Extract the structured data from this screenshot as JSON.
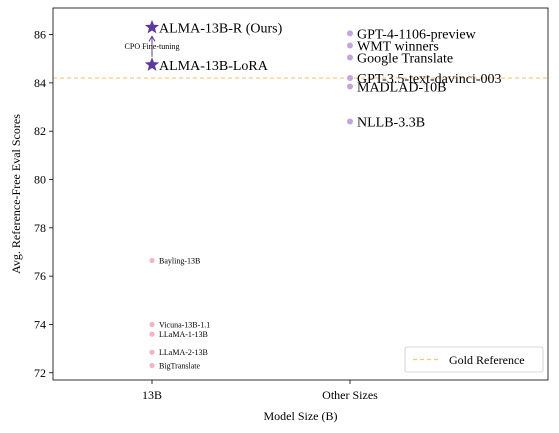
{
  "chart_data": {
    "type": "scatter",
    "title": "",
    "xlabel": "Model Size (B)",
    "ylabel": "Avg. Reference-Free Eval Scores",
    "x_categories": [
      "13B",
      "Other Sizes"
    ],
    "xlim": [
      -0.5,
      2.0
    ],
    "ylim": [
      71.7,
      87.1
    ],
    "yticks": [
      72,
      74,
      76,
      78,
      80,
      82,
      84,
      86
    ],
    "grid": false,
    "legend": {
      "position": "lower right",
      "entries": [
        {
          "label": "Gold Reference",
          "style": "dashed",
          "color": "#fdc57f"
        }
      ]
    },
    "reference_line": {
      "label": "Gold Reference",
      "y": 84.2,
      "color": "#fdc57f"
    },
    "series": [
      {
        "name": "ALMA-13B-R (Ours)",
        "x": 0,
        "y": 86.3,
        "marker": "star",
        "color": "#5b3a9a",
        "label_size": "large"
      },
      {
        "name": "ALMA-13B-LoRA",
        "x": 0,
        "y": 84.75,
        "marker": "star",
        "color": "#5b3a9a",
        "label_size": "large"
      },
      {
        "name": "Bayling-13B",
        "x": 0,
        "y": 76.65,
        "marker": "dot",
        "color": "#f4b3c5",
        "label_size": "small"
      },
      {
        "name": "Vicuna-13B-1.1",
        "x": 0,
        "y": 74.0,
        "marker": "dot",
        "color": "#f4b3c5",
        "label_size": "small"
      },
      {
        "name": "LLaMA-1-13B",
        "x": 0,
        "y": 73.6,
        "marker": "dot",
        "color": "#f4b3c5",
        "label_size": "small"
      },
      {
        "name": "LLaMA-2-13B",
        "x": 0,
        "y": 72.85,
        "marker": "dot",
        "color": "#f4b3c5",
        "label_size": "small"
      },
      {
        "name": "BigTranslate",
        "x": 0,
        "y": 72.3,
        "marker": "dot",
        "color": "#f4b3c5",
        "label_size": "small"
      },
      {
        "name": "GPT-4-1106-preview",
        "x": 1,
        "y": 86.05,
        "marker": "dot",
        "color": "#c3a7da",
        "label_size": "large"
      },
      {
        "name": "WMT winners",
        "x": 1,
        "y": 85.55,
        "marker": "dot",
        "color": "#c3a7da",
        "label_size": "large"
      },
      {
        "name": "Google Translate",
        "x": 1,
        "y": 85.05,
        "marker": "dot",
        "color": "#c3a7da",
        "label_size": "large"
      },
      {
        "name": "GPT-3.5-text-davinci-003",
        "x": 1,
        "y": 84.2,
        "marker": "dot",
        "color": "#c3a7da",
        "label_size": "large"
      },
      {
        "name": "MADLAD-10B",
        "x": 1,
        "y": 83.85,
        "marker": "dot",
        "color": "#c3a7da",
        "label_size": "large"
      },
      {
        "name": "NLLB-3.3B",
        "x": 1,
        "y": 82.4,
        "marker": "dot",
        "color": "#c3a7da",
        "label_size": "large"
      }
    ],
    "annotations": [
      {
        "text": "CPO Fine-tuning",
        "from": "ALMA-13B-LoRA",
        "to": "ALMA-13B-R (Ours)",
        "arrow": true
      }
    ]
  }
}
